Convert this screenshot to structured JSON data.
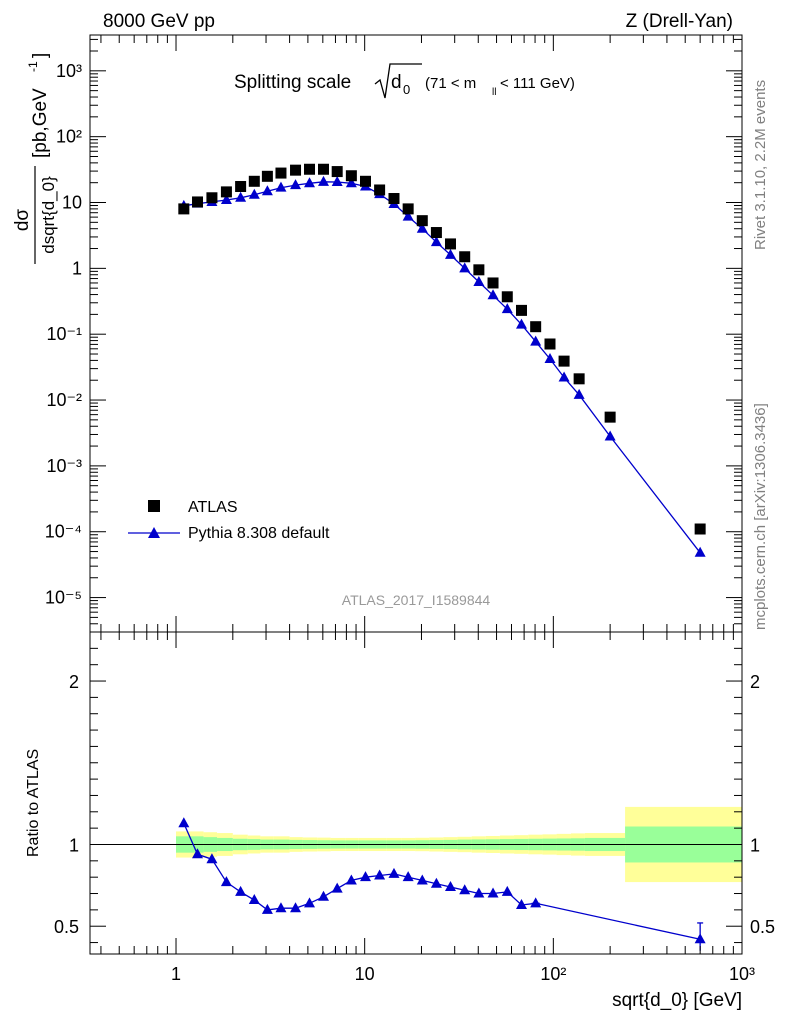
{
  "header": {
    "left": "8000 GeV pp",
    "right": "Z (Drell-Yan)"
  },
  "side": {
    "rivet": "Rivet 3.1.10,  2.2M events",
    "mcplots": "mcplots.cern.ch [arXiv:1306.3436]"
  },
  "plot": {
    "title_main": "Splitting scale",
    "title_sub": "0",
    "title_sym": "d",
    "title_range_a": "(71 < m",
    "title_range_sub": "ll",
    "title_range_b": " < 111 GeV)",
    "ylabel_num": "dσ",
    "ylabel_den": "dsqrt{d_0}",
    "ylabel_unit": "[pb,GeV",
    "ylabel_unit_sup": "-1",
    "ylabel_unit_end": "]",
    "xlabel": "sqrt{d_0} [GeV]",
    "ratio_ylabel": "Ratio to ATLAS",
    "analysis": "ATLAS_2017_I1589844"
  },
  "legend": {
    "data_label": "ATLAS",
    "mc_label": "Pythia 8.308 default"
  },
  "colors": {
    "mc": "#0000cc",
    "band_inner": "#99ff99",
    "band_outer": "#ffff99",
    "data": "#000000"
  },
  "chart_data": {
    "type": "scatter",
    "x_scale": "log",
    "y_scale": "log",
    "xlim": [
      0.35,
      1000
    ],
    "ylim": [
      3e-06,
      3500
    ],
    "x_ticks": [
      "1",
      "10",
      "10²",
      "10³"
    ],
    "y_ticks": [
      "10⁻⁵",
      "10⁻⁴",
      "10⁻³",
      "10⁻²",
      "10⁻¹",
      "1",
      "10",
      "10²",
      "10³"
    ],
    "ratio_ylim": [
      0.33,
      2.3
    ],
    "ratio_ticks": [
      "0.5",
      "1",
      "2"
    ],
    "x": [
      1.1,
      1.3,
      1.55,
      1.85,
      2.2,
      2.6,
      3.05,
      3.6,
      4.3,
      5.1,
      6.05,
      7.15,
      8.5,
      10.1,
      12.0,
      14.3,
      17.0,
      20.2,
      24.0,
      28.5,
      33.9,
      40.3,
      47.9,
      57.0,
      67.8,
      80.6,
      96,
      114,
      137,
      200,
      600
    ],
    "series": [
      {
        "name": "ATLAS",
        "y": [
          8.0,
          10.2,
          11.8,
          14.5,
          17.5,
          21.0,
          25.0,
          28.0,
          31.0,
          32.0,
          32.0,
          29.5,
          25.5,
          21.0,
          15.5,
          11.5,
          8.0,
          5.3,
          3.5,
          2.35,
          1.5,
          0.95,
          0.6,
          0.37,
          0.23,
          0.13,
          0.071,
          0.039,
          0.021,
          0.0055,
          0.00011
        ]
      },
      {
        "name": "Pythia 8.308 default",
        "y": [
          8.9,
          9.6,
          10.2,
          10.9,
          11.8,
          13.1,
          14.8,
          16.8,
          18.4,
          19.6,
          20.6,
          20.5,
          19.6,
          17.5,
          13.4,
          9.5,
          6.1,
          4.0,
          2.5,
          1.6,
          1.0,
          0.62,
          0.39,
          0.24,
          0.14,
          0.077,
          0.042,
          0.022,
          0.012,
          0.0028,
          4.8e-05
        ],
        "ratio": [
          1.13,
          0.94,
          0.91,
          0.77,
          0.71,
          0.66,
          0.6,
          0.61,
          0.61,
          0.64,
          0.68,
          0.73,
          0.78,
          0.8,
          0.81,
          0.82,
          0.8,
          0.78,
          0.76,
          0.74,
          0.72,
          0.7,
          0.7,
          0.71,
          0.63,
          0.64,
          0.42
        ],
        "ratio_x": [
          1.1,
          1.3,
          1.55,
          1.85,
          2.2,
          2.6,
          3.05,
          3.6,
          4.3,
          5.1,
          6.05,
          7.15,
          8.5,
          10.1,
          12.0,
          14.3,
          17.0,
          20.2,
          24.0,
          28.5,
          33.9,
          40.3,
          47.9,
          57.0,
          67.8,
          80.6,
          600
        ]
      }
    ],
    "ratio_bands": {
      "edges": [
        1.0,
        1.2,
        1.4,
        1.65,
        2,
        2.4,
        2.8,
        3.3,
        4,
        4.7,
        5.6,
        6.6,
        7.9,
        9.3,
        11,
        13.1,
        15.6,
        18.5,
        22,
        26.1,
        31,
        36.9,
        43.8,
        52.1,
        61.9,
        73.6,
        87.5,
        104,
        124,
        147,
        240,
        1000
      ],
      "inner": [
        0.05,
        0.05,
        0.045,
        0.04,
        0.035,
        0.033,
        0.03,
        0.03,
        0.028,
        0.027,
        0.026,
        0.025,
        0.025,
        0.025,
        0.025,
        0.025,
        0.025,
        0.026,
        0.027,
        0.028,
        0.03,
        0.031,
        0.032,
        0.033,
        0.034,
        0.035,
        0.036,
        0.037,
        0.038,
        0.04,
        0.11
      ],
      "outer": [
        0.08,
        0.08,
        0.075,
        0.07,
        0.06,
        0.055,
        0.05,
        0.05,
        0.045,
        0.043,
        0.042,
        0.04,
        0.04,
        0.04,
        0.04,
        0.04,
        0.04,
        0.041,
        0.043,
        0.045,
        0.047,
        0.05,
        0.052,
        0.055,
        0.057,
        0.06,
        0.062,
        0.065,
        0.068,
        0.07,
        0.23
      ]
    }
  }
}
